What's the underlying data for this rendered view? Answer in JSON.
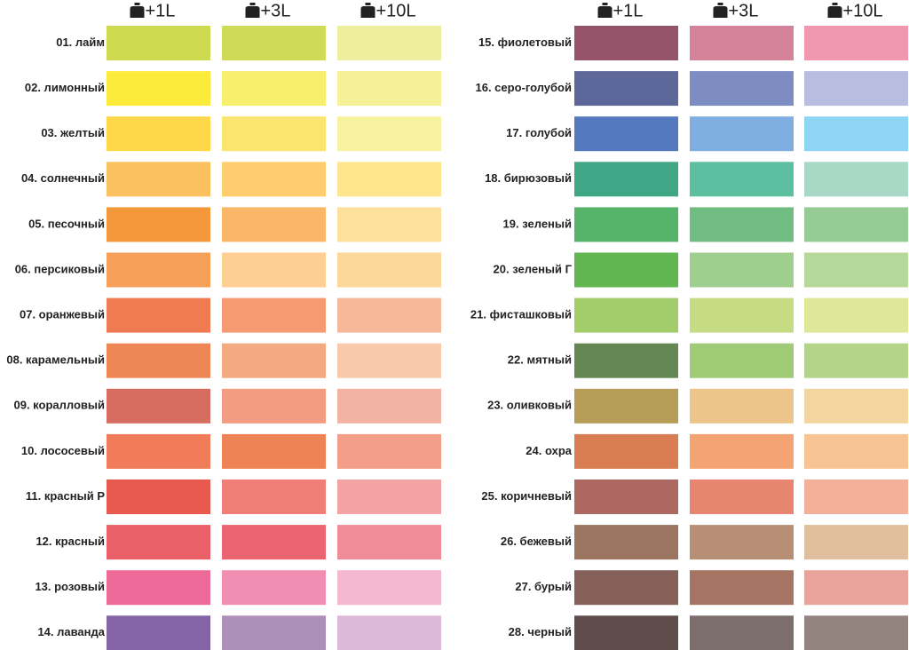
{
  "groups": [
    {
      "headers": [
        "+1L",
        "+3L",
        "+10L"
      ],
      "rows": [
        {
          "label": "01. лайм",
          "colors": [
            "#cdd94f",
            "#cfdb56",
            "#edef9e"
          ]
        },
        {
          "label": "02. лимонный",
          "colors": [
            "#fdeb3b",
            "#f8ef6e",
            "#f6f196"
          ]
        },
        {
          "label": "03. желтый",
          "colors": [
            "#fed849",
            "#fbe56e",
            "#f7f29f"
          ]
        },
        {
          "label": "04. солнечный",
          "colors": [
            "#fbc15f",
            "#fdcd6e",
            "#fde68e"
          ]
        },
        {
          "label": "05. песочный",
          "colors": [
            "#f4993b",
            "#f9b767",
            "#fde09b"
          ]
        },
        {
          "label": "06. персиковый",
          "colors": [
            "#f59f58",
            "#fdcf92",
            "#fbd89a"
          ]
        },
        {
          "label": "07. оранжевый",
          "colors": [
            "#f07a52",
            "#f59a72",
            "#f6b898"
          ]
        },
        {
          "label": "08. карамельный",
          "colors": [
            "#ee8655",
            "#f4aa80",
            "#f8c9aa"
          ]
        },
        {
          "label": "09. коралловый",
          "colors": [
            "#d76d61",
            "#f29c84",
            "#f3b3a4"
          ]
        },
        {
          "label": "10. лососевый",
          "colors": [
            "#f07c5a",
            "#ee8456",
            "#f29e88"
          ]
        },
        {
          "label": "11. красный Р",
          "colors": [
            "#e85a4d",
            "#ef7e76",
            "#f3a3a4"
          ]
        },
        {
          "label": "12. красный",
          "colors": [
            "#ea5f68",
            "#ea6570",
            "#f08c98"
          ]
        },
        {
          "label": "13. розовый",
          "colors": [
            "#ee6b99",
            "#f08fb1",
            "#f5b8d1"
          ]
        },
        {
          "label": "14. лаванда",
          "colors": [
            "#8563a4",
            "#ae8eba",
            "#dcb8d9"
          ]
        }
      ]
    },
    {
      "headers": [
        "+1L",
        "+3L",
        "+10L"
      ],
      "rows": [
        {
          "label": "15. фиолетовый",
          "colors": [
            "#95536a",
            "#d5839a",
            "#f197ae"
          ]
        },
        {
          "label": "16. серо-голубой",
          "colors": [
            "#5e6799",
            "#7d8cc3",
            "#b9bde0"
          ]
        },
        {
          "label": "17. голубой",
          "colors": [
            "#5479be",
            "#7fafe0",
            "#8ed4f4"
          ]
        },
        {
          "label": "18. бирюзовый",
          "colors": [
            "#41a686",
            "#5cbf9f",
            "#a8d9c6"
          ]
        },
        {
          "label": "19. зеленый",
          "colors": [
            "#55b46a",
            "#71bc80",
            "#96cb96"
          ]
        },
        {
          "label": "20. зеленый Г",
          "colors": [
            "#62b652",
            "#9fcf8f",
            "#b4d99b"
          ]
        },
        {
          "label": "21. фисташковый",
          "colors": [
            "#a3cd6b",
            "#c6dc84",
            "#dfe79b"
          ]
        },
        {
          "label": "22. мятный",
          "colors": [
            "#658753",
            "#a0cb76",
            "#b4d48a"
          ]
        },
        {
          "label": "23. оливковый",
          "colors": [
            "#b59d58",
            "#edc58b",
            "#f3d69f"
          ]
        },
        {
          "label": "24. охра",
          "colors": [
            "#d97e52",
            "#f4a472",
            "#f9c494"
          ]
        },
        {
          "label": "25. коричневый",
          "colors": [
            "#ae6862",
            "#e88570",
            "#f5b09a"
          ]
        },
        {
          "label": "26. бежевый",
          "colors": [
            "#9b7560",
            "#b68f74",
            "#e0bf9f"
          ]
        },
        {
          "label": "27. бурый",
          "colors": [
            "#866159",
            "#a57463",
            "#e8a39b"
          ]
        },
        {
          "label": "28. черный",
          "colors": [
            "#5e4d4b",
            "#7c6e6b",
            "#93847f"
          ]
        }
      ]
    }
  ]
}
